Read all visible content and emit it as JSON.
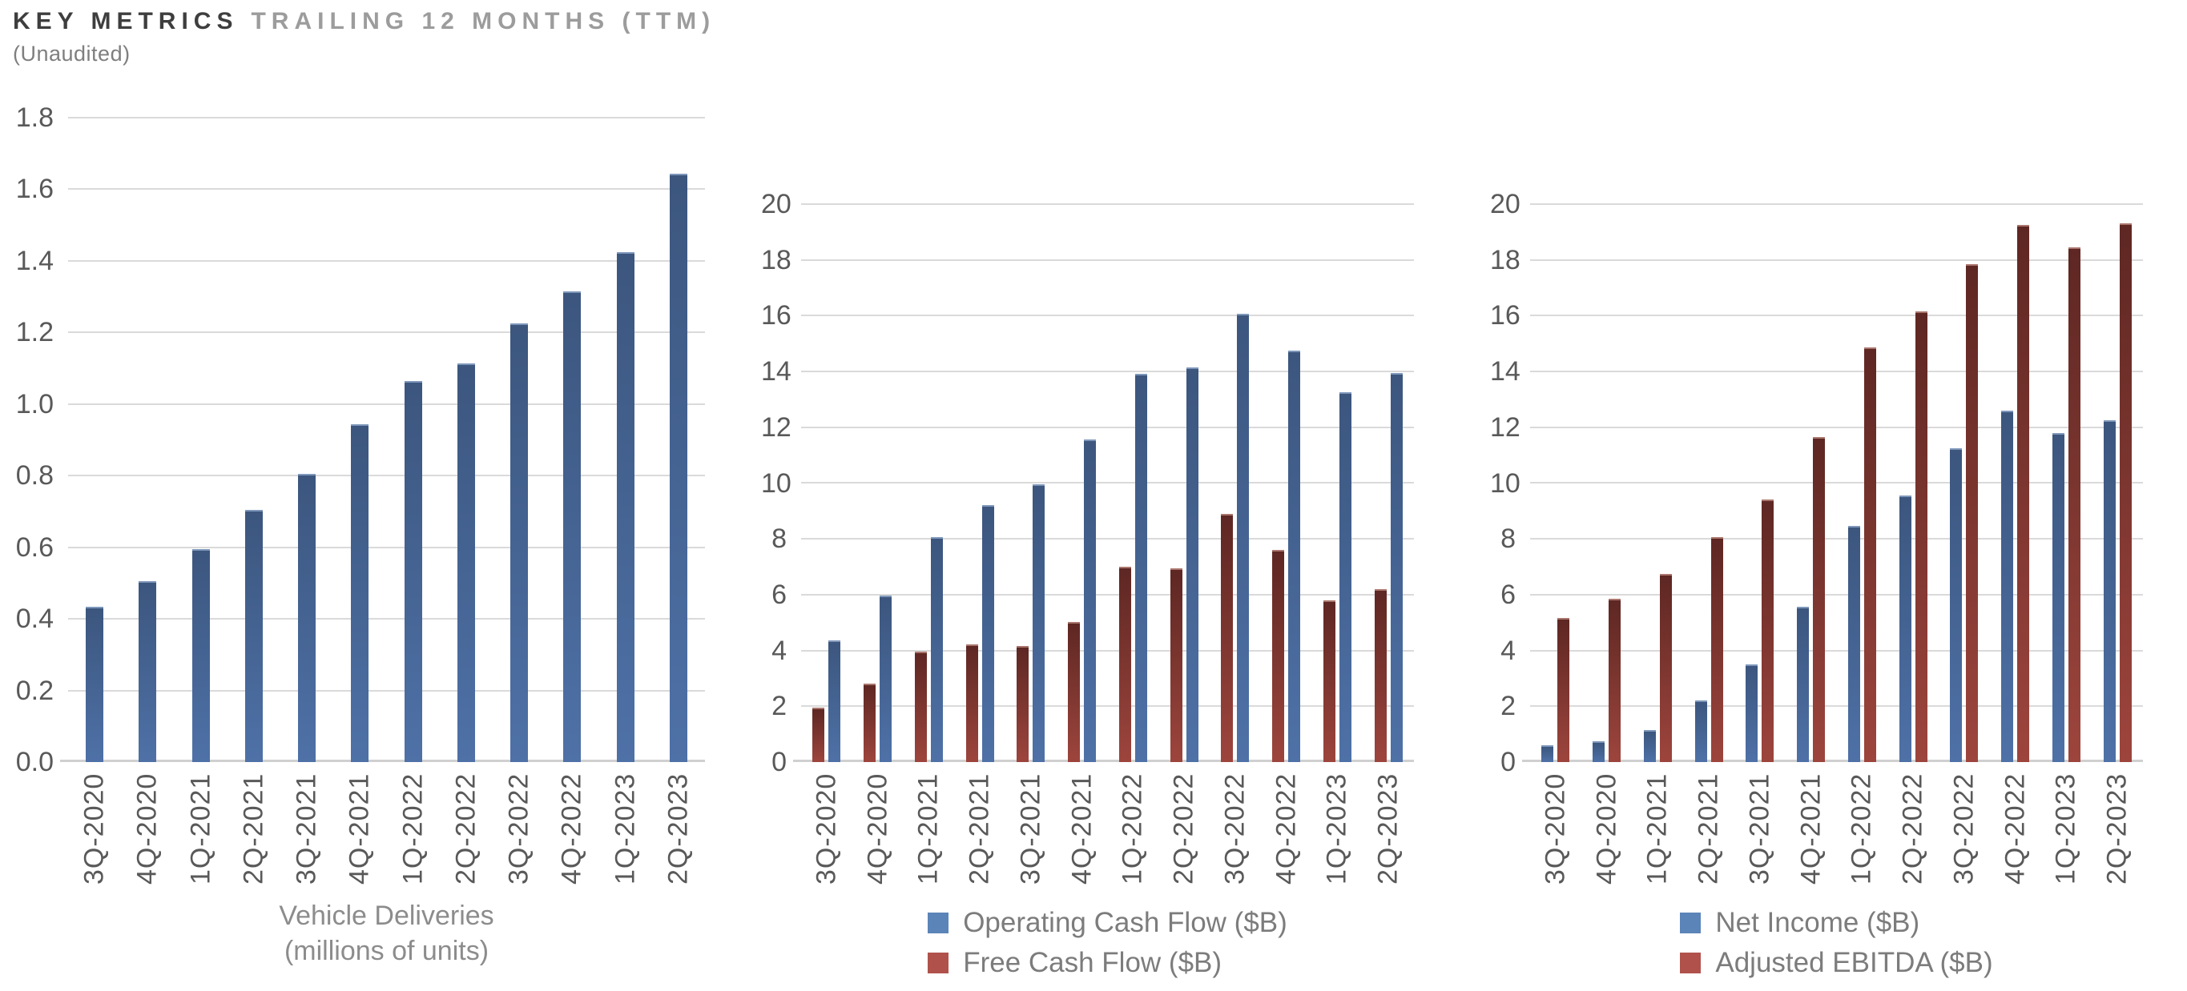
{
  "header": {
    "title_primary": "KEY METRICS",
    "title_secondary": "TRAILING 12 MONTHS (TTM)",
    "subtitle": "(Unaudited)"
  },
  "colors": {
    "blue_bar_top": "#3C567E",
    "blue_bar_bottom": "#4E71A7",
    "red_bar_top": "#5E2723",
    "red_bar_bottom": "#9D453D",
    "legend_blue": "#5B84B9",
    "legend_red": "#B0524B",
    "axis_text": "#595959",
    "gridline": "#DADADA",
    "caption_text": "#8C8C8C",
    "title_dark": "#3E3E3E",
    "title_gray": "#9C9C9C"
  },
  "chart_data": [
    {
      "type": "bar",
      "title": "Vehicle Deliveries (millions of units)",
      "categories": [
        "3Q-2020",
        "4Q-2020",
        "1Q-2021",
        "2Q-2021",
        "3Q-2021",
        "4Q-2021",
        "1Q-2022",
        "2Q-2022",
        "3Q-2022",
        "4Q-2022",
        "1Q-2023",
        "2Q-2023"
      ],
      "series": [
        {
          "name": "Vehicle Deliveries",
          "color": "blue",
          "values": [
            0.43,
            0.5,
            0.59,
            0.7,
            0.8,
            0.94,
            1.06,
            1.11,
            1.22,
            1.31,
            1.42,
            1.64
          ]
        }
      ],
      "ylim": [
        0,
        1.8
      ],
      "ytick_step": 0.2,
      "ytick_format": "1dp",
      "grid": true,
      "caption_lines": [
        "Vehicle Deliveries",
        "(millions of units)"
      ]
    },
    {
      "type": "bar",
      "title": "Operating Cash Flow and Free Cash Flow ($B)",
      "categories": [
        "3Q-2020",
        "4Q-2020",
        "1Q-2021",
        "2Q-2021",
        "3Q-2021",
        "4Q-2021",
        "1Q-2022",
        "2Q-2022",
        "3Q-2022",
        "4Q-2022",
        "1Q-2023",
        "2Q-2023"
      ],
      "series": [
        {
          "name": "Free Cash Flow ($B)",
          "color": "red",
          "values": [
            1.9,
            2.75,
            3.9,
            4.15,
            4.1,
            4.95,
            6.95,
            6.9,
            8.85,
            7.55,
            5.75,
            6.15
          ]
        },
        {
          "name": "Operating Cash Flow ($B)",
          "color": "blue",
          "values": [
            4.3,
            5.9,
            8.0,
            9.15,
            9.9,
            11.5,
            13.85,
            14.1,
            16.0,
            14.7,
            13.2,
            13.9
          ]
        }
      ],
      "ylim": [
        0,
        20
      ],
      "ytick_step": 2,
      "ytick_format": "int",
      "grid": true,
      "legend": [
        {
          "label": "Operating Cash Flow ($B)",
          "color": "blue"
        },
        {
          "label": "Free Cash Flow ($B)",
          "color": "red"
        }
      ],
      "legend_position": "bottom"
    },
    {
      "type": "bar",
      "title": "Net Income and Adjusted EBITDA ($B)",
      "categories": [
        "3Q-2020",
        "4Q-2020",
        "1Q-2021",
        "2Q-2021",
        "3Q-2021",
        "4Q-2021",
        "1Q-2022",
        "2Q-2022",
        "3Q-2022",
        "4Q-2022",
        "1Q-2023",
        "2Q-2023"
      ],
      "series": [
        {
          "name": "Net Income ($B)",
          "color": "blue",
          "values": [
            0.55,
            0.7,
            1.1,
            2.15,
            3.45,
            5.5,
            8.4,
            9.5,
            11.2,
            12.55,
            11.75,
            12.2
          ]
        },
        {
          "name": "Adjusted EBITDA ($B)",
          "color": "red",
          "values": [
            5.1,
            5.8,
            6.7,
            8.0,
            9.35,
            11.6,
            14.8,
            16.1,
            17.8,
            19.2,
            18.4,
            19.25
          ]
        }
      ],
      "ylim": [
        0,
        20
      ],
      "ytick_step": 2,
      "ytick_format": "int",
      "grid": true,
      "legend": [
        {
          "label": "Net Income ($B)",
          "color": "blue"
        },
        {
          "label": "Adjusted EBITDA ($B)",
          "color": "red"
        }
      ],
      "legend_position": "bottom"
    }
  ]
}
